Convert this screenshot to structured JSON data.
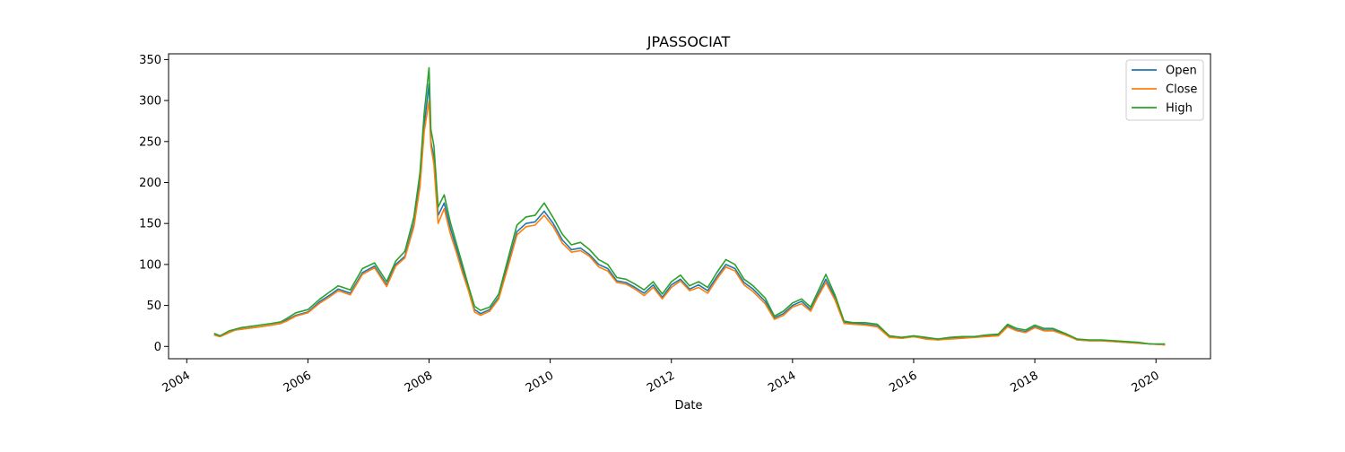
{
  "chart_data": {
    "type": "line",
    "title": "JPASSOCIAT",
    "xlabel": "Date",
    "ylabel": "",
    "xlim": [
      2003.7,
      2020.9
    ],
    "ylim": [
      -15,
      357
    ],
    "xticks": [
      2004,
      2006,
      2008,
      2010,
      2012,
      2014,
      2016,
      2018,
      2020
    ],
    "xtick_labels": [
      "2004",
      "2006",
      "2008",
      "2010",
      "2012",
      "2014",
      "2016",
      "2018",
      "2020"
    ],
    "yticks": [
      0,
      50,
      100,
      150,
      200,
      250,
      300,
      350
    ],
    "ytick_labels": [
      "0",
      "50",
      "100",
      "150",
      "200",
      "250",
      "300",
      "350"
    ],
    "grid": false,
    "legend_position": "top-right",
    "x": [
      2004.45,
      2004.55,
      2004.7,
      2004.8,
      2004.9,
      2005.0,
      2005.2,
      2005.4,
      2005.55,
      2005.65,
      2005.8,
      2006.0,
      2006.2,
      2006.35,
      2006.5,
      2006.7,
      2006.9,
      2007.1,
      2007.3,
      2007.45,
      2007.6,
      2007.75,
      2007.85,
      2007.92,
      2008.0,
      2008.03,
      2008.08,
      2008.15,
      2008.25,
      2008.35,
      2008.45,
      2008.55,
      2008.65,
      2008.75,
      2008.85,
      2009.0,
      2009.15,
      2009.3,
      2009.45,
      2009.6,
      2009.75,
      2009.9,
      2010.05,
      2010.2,
      2010.35,
      2010.5,
      2010.65,
      2010.8,
      2010.95,
      2011.1,
      2011.25,
      2011.4,
      2011.55,
      2011.7,
      2011.85,
      2012.0,
      2012.15,
      2012.3,
      2012.45,
      2012.6,
      2012.75,
      2012.9,
      2013.05,
      2013.2,
      2013.35,
      2013.55,
      2013.7,
      2013.85,
      2014.0,
      2014.15,
      2014.3,
      2014.4,
      2014.55,
      2014.7,
      2014.85,
      2015.0,
      2015.2,
      2015.4,
      2015.6,
      2015.8,
      2016.0,
      2016.2,
      2016.4,
      2016.6,
      2016.8,
      2017.0,
      2017.2,
      2017.4,
      2017.55,
      2017.7,
      2017.85,
      2018.0,
      2018.15,
      2018.3,
      2018.5,
      2018.7,
      2018.9,
      2019.1,
      2019.3,
      2019.5,
      2019.7,
      2019.9,
      2020.15
    ],
    "series": [
      {
        "name": "Open",
        "color": "#1f77b4",
        "values": [
          14,
          12,
          17,
          20,
          21,
          22,
          24,
          26,
          28,
          32,
          38,
          42,
          55,
          62,
          70,
          65,
          90,
          98,
          75,
          100,
          110,
          150,
          200,
          270,
          320,
          250,
          230,
          160,
          175,
          145,
          120,
          95,
          70,
          45,
          40,
          45,
          60,
          100,
          140,
          150,
          152,
          165,
          150,
          130,
          118,
          120,
          112,
          100,
          95,
          80,
          78,
          72,
          65,
          75,
          60,
          75,
          82,
          70,
          75,
          68,
          85,
          100,
          95,
          78,
          70,
          55,
          35,
          40,
          50,
          55,
          45,
          60,
          82,
          60,
          30,
          28,
          27,
          25,
          12,
          10,
          12,
          10,
          8,
          10,
          11,
          11,
          13,
          14,
          25,
          20,
          18,
          24,
          20,
          20,
          15,
          8,
          7,
          7,
          6,
          5,
          4,
          3,
          2
        ]
      },
      {
        "name": "Close",
        "color": "#ff7f0e",
        "values": [
          14,
          12,
          17,
          20,
          21,
          22,
          24,
          26,
          28,
          31,
          37,
          41,
          53,
          60,
          68,
          63,
          88,
          96,
          73,
          98,
          108,
          146,
          195,
          262,
          300,
          245,
          222,
          150,
          168,
          138,
          115,
          90,
          68,
          42,
          38,
          43,
          58,
          96,
          136,
          146,
          148,
          160,
          146,
          126,
          115,
          117,
          110,
          97,
          92,
          78,
          76,
          70,
          62,
          72,
          58,
          72,
          80,
          68,
          72,
          65,
          82,
          97,
          92,
          75,
          67,
          52,
          33,
          38,
          48,
          52,
          43,
          58,
          78,
          57,
          28,
          27,
          26,
          24,
          11,
          10,
          12,
          9,
          8,
          9,
          10,
          11,
          12,
          13,
          24,
          19,
          17,
          23,
          19,
          19,
          14,
          8,
          7,
          7,
          6,
          5,
          4,
          3,
          2
        ]
      },
      {
        "name": "High",
        "color": "#2ca02c",
        "values": [
          16,
          13,
          19,
          21,
          23,
          24,
          26,
          28,
          30,
          34,
          41,
          45,
          58,
          66,
          74,
          69,
          95,
          102,
          79,
          104,
          116,
          158,
          212,
          285,
          340,
          265,
          245,
          170,
          185,
          152,
          126,
          100,
          74,
          49,
          44,
          48,
          64,
          106,
          148,
          158,
          160,
          175,
          157,
          137,
          124,
          127,
          118,
          106,
          100,
          84,
          82,
          76,
          69,
          79,
          64,
          79,
          87,
          74,
          79,
          72,
          90,
          106,
          100,
          82,
          74,
          59,
          37,
          43,
          53,
          58,
          48,
          64,
          88,
          63,
          31,
          29,
          29,
          27,
          13,
          11,
          13,
          11,
          9,
          11,
          12,
          12,
          14,
          15,
          27,
          22,
          20,
          26,
          22,
          22,
          16,
          9,
          8,
          8,
          7,
          6,
          5,
          3,
          3
        ]
      }
    ]
  }
}
